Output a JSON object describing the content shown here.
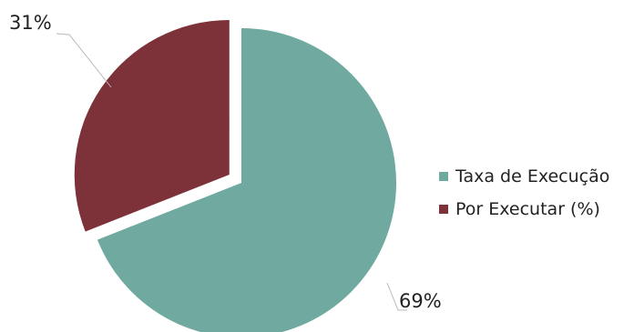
{
  "chart_data": {
    "type": "pie",
    "title": "",
    "slices": [
      {
        "label": "Taxa de Execução",
        "value": 69,
        "value_label": "69%",
        "color": "#6fa99f"
      },
      {
        "label": "Por Executar (%)",
        "value": 31,
        "value_label": "31%",
        "color": "#7d3138"
      }
    ],
    "legend_position": "right",
    "exploded_slice": "Por Executar (%)"
  }
}
